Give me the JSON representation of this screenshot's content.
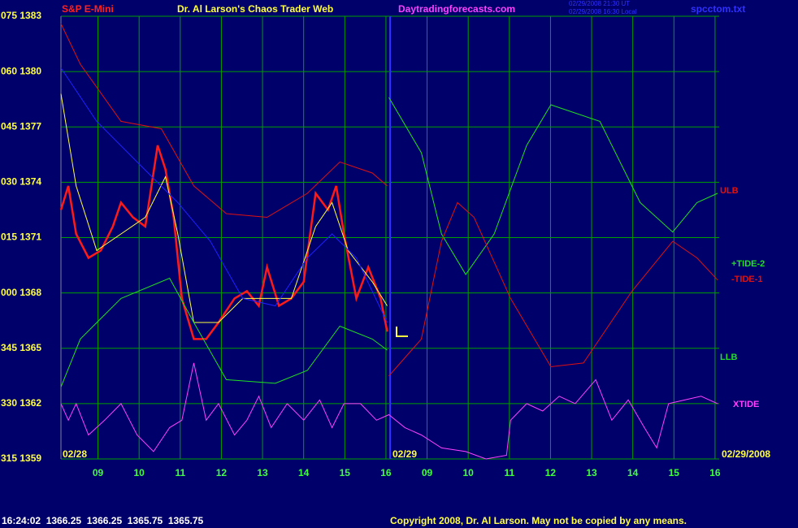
{
  "chart_data": {
    "type": "line",
    "header": {
      "instrument": "S&P E-Mini",
      "title": "Dr. Al Larson's Chaos Trader Web",
      "site": "Daytradingforecasts.com",
      "stamp_ut": "02/29/2008 21:30 UT",
      "stamp_local": "02/29/2008 16:30 Local",
      "file": "spcctom.txt"
    },
    "footer": {
      "quote": "16:24:02  1366.25  1366.25  1365.75  1365.75",
      "copyright": "Copyright 2008, Dr. Al Larson. May not be copied by any means."
    },
    "date_labels": [
      "02/28",
      "02/29",
      "02/29/2008"
    ],
    "xlim": [
      0.1,
      16.1
    ],
    "xticks": [
      {
        "value": 1,
        "label": "09"
      },
      {
        "value": 2,
        "label": "10"
      },
      {
        "value": 3,
        "label": "11"
      },
      {
        "value": 4,
        "label": "12"
      },
      {
        "value": 5,
        "label": "13"
      },
      {
        "value": 6,
        "label": "14"
      },
      {
        "value": 7,
        "label": "15"
      },
      {
        "value": 8,
        "label": "16"
      },
      {
        "value": 9,
        "label": "09"
      },
      {
        "value": 10,
        "label": "10"
      },
      {
        "value": 11,
        "label": "11"
      },
      {
        "value": 12,
        "label": "12"
      },
      {
        "value": 13,
        "label": "13"
      },
      {
        "value": 14,
        "label": "14"
      },
      {
        "value": 15,
        "label": "15"
      },
      {
        "value": 16,
        "label": "16"
      }
    ],
    "ylim": [
      1359,
      1383
    ],
    "yticks": [
      {
        "value": 1383,
        "label": "075 1383"
      },
      {
        "value": 1380,
        "label": "060 1380"
      },
      {
        "value": 1377,
        "label": "045 1377"
      },
      {
        "value": 1374,
        "label": "030 1374"
      },
      {
        "value": 1371,
        "label": "015 1371"
      },
      {
        "value": 1368,
        "label": "000 1368"
      },
      {
        "value": 1365,
        "label": "345 1365"
      },
      {
        "value": 1362,
        "label": "330 1362"
      },
      {
        "value": 1359,
        "label": "315 1359"
      }
    ],
    "grid": true,
    "series": [
      {
        "color": "#ff1a1a",
        "x": [
          0.1,
          0.28,
          0.47,
          0.77,
          1.07,
          1.36,
          1.56,
          1.85,
          2.15,
          2.45,
          2.64,
          2.84,
          3.04,
          3.33,
          3.63,
          3.93,
          4.32,
          4.62,
          4.91,
          5.11,
          5.4,
          5.7,
          6.0,
          6.29,
          6.59,
          6.79,
          6.98,
          7.28,
          7.57,
          7.87,
          8.03
        ],
        "values": [
          1372.5,
          1373.8,
          1371.2,
          1369.9,
          1370.3,
          1371.6,
          1372.9,
          1372.1,
          1371.6,
          1376.0,
          1374.7,
          1372.1,
          1367.7,
          1365.5,
          1365.5,
          1366.4,
          1367.7,
          1368.1,
          1367.3,
          1369.4,
          1367.3,
          1367.7,
          1368.6,
          1373.4,
          1372.5,
          1373.8,
          1371.2,
          1367.7,
          1369.4,
          1367.7,
          1365.9
        ]
      },
      {
        "color": "#ffff40",
        "x": [
          0.1,
          0.47,
          0.97,
          1.56,
          2.15,
          2.64,
          2.94,
          3.33,
          3.93,
          4.52,
          5.11,
          5.7,
          6.29,
          6.69,
          7.08,
          7.67,
          8.03
        ],
        "values": [
          1378.8,
          1373.8,
          1370.3,
          1371.2,
          1372.1,
          1374.3,
          1371.2,
          1366.4,
          1366.4,
          1367.7,
          1367.7,
          1367.7,
          1371.6,
          1372.9,
          1370.3,
          1368.6,
          1367.3
        ]
      },
      {
        "color": "#2020ff",
        "x": [
          0.1,
          0.97,
          1.95,
          2.94,
          3.73,
          4.52,
          5.31,
          6.09,
          6.69,
          7.28,
          8.03
        ],
        "values": [
          1380.2,
          1377.3,
          1375.1,
          1372.9,
          1370.8,
          1367.7,
          1367.3,
          1369.9,
          1371.2,
          1369.9,
          1366.4
        ]
      },
      {
        "name": "ULB",
        "color": "#e01010",
        "x": [
          0.1,
          0.57,
          1.56,
          2.54,
          3.33,
          4.12,
          5.11,
          6.09,
          6.88,
          7.67,
          8.03
        ],
        "values": [
          1382.6,
          1380.4,
          1377.3,
          1376.9,
          1373.8,
          1372.3,
          1372.1,
          1373.4,
          1375.1,
          1374.5,
          1373.8
        ]
      },
      {
        "name": "+TIDE-2",
        "color": "#20e020",
        "x": [
          8.07,
          8.86,
          9.35,
          9.94,
          10.63,
          11.42,
          12.01,
          13.2,
          14.18,
          14.97,
          15.56,
          16.06
        ],
        "values": [
          1378.6,
          1375.6,
          1371.2,
          1369.0,
          1371.2,
          1376.0,
          1378.2,
          1377.3,
          1372.9,
          1371.3,
          1372.9,
          1373.4
        ]
      },
      {
        "name": "-TIDE-1",
        "color": "#e01010",
        "x": [
          8.07,
          8.86,
          9.35,
          9.74,
          10.14,
          11.03,
          12.01,
          12.8,
          13.98,
          14.97,
          15.56,
          16.06
        ],
        "values": [
          1363.5,
          1365.5,
          1370.8,
          1372.9,
          1372.1,
          1367.7,
          1364.0,
          1364.2,
          1368.1,
          1370.8,
          1369.9,
          1368.7
        ]
      },
      {
        "name": "LLB",
        "color": "#20e020",
        "x": [
          0.1,
          0.57,
          1.56,
          2.74,
          3.33,
          4.12,
          5.31,
          6.09,
          6.88,
          7.67,
          8.03
        ],
        "values": [
          1362.9,
          1365.5,
          1367.7,
          1368.8,
          1366.4,
          1363.3,
          1363.1,
          1363.8,
          1366.2,
          1365.5,
          1364.9
        ]
      },
      {
        "name": "XTIDE",
        "color": "#ff40ff",
        "x": [
          0.1,
          0.28,
          0.47,
          0.77,
          1.16,
          1.56,
          1.95,
          2.35,
          2.74,
          3.04,
          3.33,
          3.63,
          3.93,
          4.32,
          4.62,
          4.91,
          5.21,
          5.6,
          6.0,
          6.39,
          6.69,
          6.98,
          7.38,
          7.77,
          8.07,
          8.46,
          8.86,
          9.35,
          9.94,
          10.43,
          10.93,
          11.03,
          11.42,
          11.81,
          12.21,
          12.6,
          13.1,
          13.49,
          13.89,
          14.28,
          14.58,
          14.87,
          15.27,
          15.66,
          16.06
        ],
        "values": [
          1362.0,
          1361.1,
          1362.0,
          1360.3,
          1361.1,
          1362.0,
          1360.3,
          1359.4,
          1360.7,
          1361.1,
          1364.2,
          1361.1,
          1362.0,
          1360.3,
          1361.1,
          1362.4,
          1360.7,
          1362.0,
          1361.1,
          1362.2,
          1360.7,
          1362.0,
          1362.0,
          1361.1,
          1361.4,
          1360.7,
          1360.3,
          1359.6,
          1359.4,
          1359.0,
          1359.2,
          1361.1,
          1362.0,
          1361.6,
          1362.4,
          1362.0,
          1363.3,
          1361.1,
          1362.2,
          1360.7,
          1359.6,
          1362.0,
          1362.2,
          1362.4,
          1362.0
        ]
      }
    ]
  }
}
